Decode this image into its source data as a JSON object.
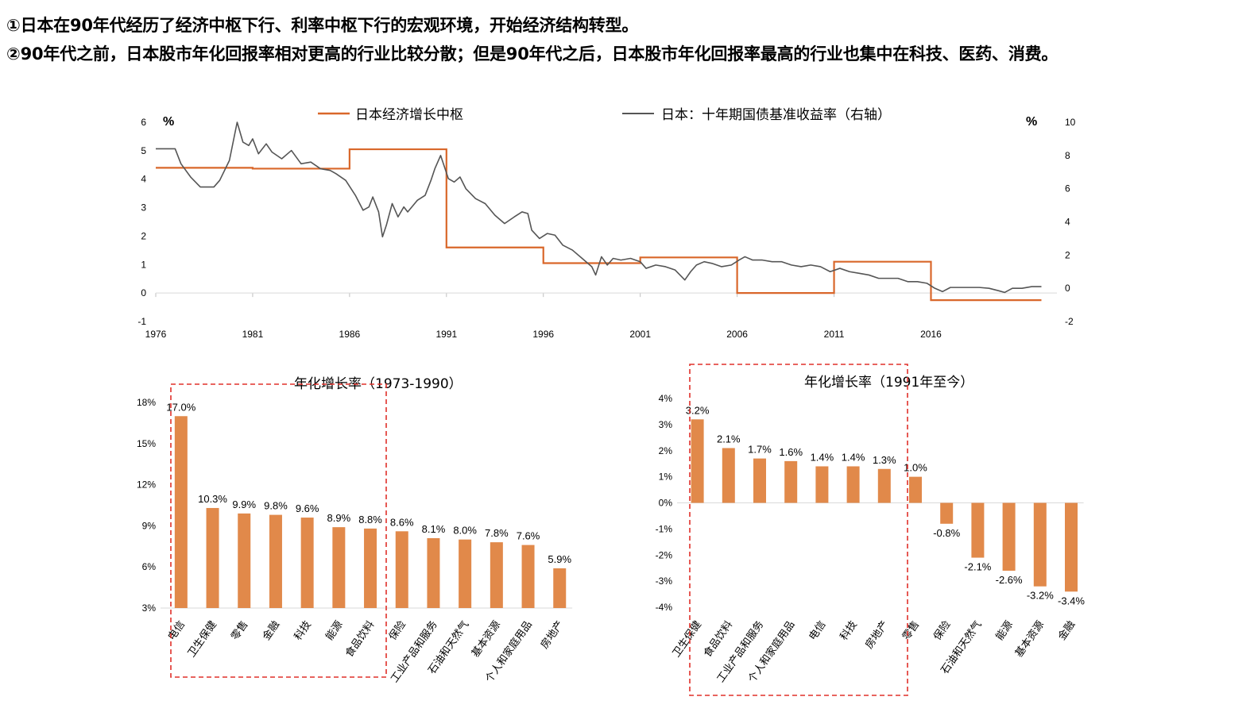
{
  "notes": {
    "line1": "①日本在90年代经历了经济中枢下行、利率中枢下行的宏观环境，开始经济结构转型。",
    "line2": "②90年代之前，日本股市年化回报率相对更高的行业比较分散；但是90年代之后，日本股市年化回报率最高的行业也集中在科技、医药、消费。"
  },
  "colors": {
    "orange": "#D9672A",
    "gray": "#555555",
    "bar": "#E1894A",
    "highlight": "#E0302A"
  },
  "chart_data": [
    {
      "type": "line",
      "left_unit": "%",
      "right_unit": "%",
      "x_ticks": [
        "1976",
        "1981",
        "1986",
        "1991",
        "1996",
        "2001",
        "2006",
        "2011",
        "2016"
      ],
      "y_ticks_left": [
        "6",
        "5",
        "4",
        "3",
        "2",
        "1",
        "0",
        "-1"
      ],
      "y_ticks_right": [
        "10",
        "8",
        "6",
        "4",
        "2",
        "0",
        "-2"
      ],
      "ylim_left": [
        -1,
        6
      ],
      "ylim_right": [
        -2,
        10
      ],
      "xlim": [
        1976,
        2022.5
      ],
      "series": [
        {
          "name": "日本经济增长中枢",
          "axis": "left",
          "step": true,
          "points": [
            [
              1976,
              4.4
            ],
            [
              1981,
              4.4
            ],
            [
              1981,
              4.37
            ],
            [
              1986,
              4.37
            ],
            [
              1986,
              5.05
            ],
            [
              1991,
              5.05
            ],
            [
              1991,
              1.6
            ],
            [
              1996,
              1.6
            ],
            [
              1996,
              1.05
            ],
            [
              2001,
              1.05
            ],
            [
              2001,
              1.25
            ],
            [
              2006,
              1.25
            ],
            [
              2006,
              0.0
            ],
            [
              2011,
              0.0
            ],
            [
              2011,
              1.1
            ],
            [
              2016,
              1.1
            ],
            [
              2016,
              -0.25
            ],
            [
              2021.7,
              -0.25
            ]
          ]
        },
        {
          "name": "日本：十年期国债基准收益率（右轴）",
          "axis": "right",
          "points": [
            [
              1976,
              8.4
            ],
            [
              1977,
              8.4
            ],
            [
              1977.3,
              7.5
            ],
            [
              1977.8,
              6.7
            ],
            [
              1978.3,
              6.1
            ],
            [
              1979,
              6.1
            ],
            [
              1979.3,
              6.5
            ],
            [
              1979.8,
              7.7
            ],
            [
              1980.2,
              10.0
            ],
            [
              1980.5,
              8.8
            ],
            [
              1980.8,
              8.6
            ],
            [
              1981,
              9.0
            ],
            [
              1981.3,
              8.1
            ],
            [
              1981.7,
              8.7
            ],
            [
              1982,
              8.2
            ],
            [
              1982.5,
              7.8
            ],
            [
              1983,
              8.3
            ],
            [
              1983.5,
              7.5
            ],
            [
              1984,
              7.6
            ],
            [
              1984.5,
              7.2
            ],
            [
              1985,
              7.1
            ],
            [
              1985.3,
              6.9
            ],
            [
              1985.8,
              6.5
            ],
            [
              1986.3,
              5.6
            ],
            [
              1986.7,
              4.7
            ],
            [
              1987,
              4.9
            ],
            [
              1987.2,
              5.5
            ],
            [
              1987.5,
              4.6
            ],
            [
              1987.7,
              3.1
            ],
            [
              1987.9,
              3.8
            ],
            [
              1988.2,
              5.1
            ],
            [
              1988.5,
              4.3
            ],
            [
              1988.8,
              4.9
            ],
            [
              1989,
              4.6
            ],
            [
              1989.5,
              5.3
            ],
            [
              1989.9,
              5.6
            ],
            [
              1990.2,
              6.5
            ],
            [
              1990.4,
              7.2
            ],
            [
              1990.7,
              8.0
            ],
            [
              1990.9,
              7.3
            ],
            [
              1991.1,
              6.6
            ],
            [
              1991.4,
              6.4
            ],
            [
              1991.7,
              6.7
            ],
            [
              1992,
              6.0
            ],
            [
              1992.5,
              5.4
            ],
            [
              1993,
              5.1
            ],
            [
              1993.5,
              4.4
            ],
            [
              1994,
              3.9
            ],
            [
              1994.5,
              4.3
            ],
            [
              1994.9,
              4.6
            ],
            [
              1995.2,
              4.5
            ],
            [
              1995.4,
              3.5
            ],
            [
              1995.8,
              3.0
            ],
            [
              1996.2,
              3.3
            ],
            [
              1996.6,
              3.2
            ],
            [
              1997,
              2.6
            ],
            [
              1997.5,
              2.3
            ],
            [
              1998,
              1.8
            ],
            [
              1998.5,
              1.3
            ],
            [
              1998.7,
              0.8
            ],
            [
              1999,
              1.9
            ],
            [
              1999.3,
              1.4
            ],
            [
              1999.6,
              1.8
            ],
            [
              2000,
              1.7
            ],
            [
              2000.5,
              1.8
            ],
            [
              2001,
              1.6
            ],
            [
              2001.3,
              1.2
            ],
            [
              2001.8,
              1.4
            ],
            [
              2002.3,
              1.3
            ],
            [
              2002.8,
              1.1
            ],
            [
              2003.3,
              0.5
            ],
            [
              2003.6,
              1.0
            ],
            [
              2003.9,
              1.4
            ],
            [
              2004.3,
              1.6
            ],
            [
              2004.7,
              1.5
            ],
            [
              2005.2,
              1.3
            ],
            [
              2005.7,
              1.4
            ],
            [
              2006.1,
              1.7
            ],
            [
              2006.4,
              1.9
            ],
            [
              2006.8,
              1.7
            ],
            [
              2007.3,
              1.7
            ],
            [
              2007.8,
              1.6
            ],
            [
              2008.3,
              1.6
            ],
            [
              2008.8,
              1.4
            ],
            [
              2009.3,
              1.3
            ],
            [
              2009.8,
              1.4
            ],
            [
              2010.3,
              1.3
            ],
            [
              2010.8,
              1.0
            ],
            [
              2011.3,
              1.2
            ],
            [
              2011.8,
              1.0
            ],
            [
              2012.3,
              0.9
            ],
            [
              2012.8,
              0.8
            ],
            [
              2013.3,
              0.6
            ],
            [
              2013.8,
              0.6
            ],
            [
              2014.3,
              0.6
            ],
            [
              2014.8,
              0.4
            ],
            [
              2015.3,
              0.4
            ],
            [
              2015.8,
              0.3
            ],
            [
              2016.2,
              0.0
            ],
            [
              2016.6,
              -0.2
            ],
            [
              2017,
              0.05
            ],
            [
              2017.5,
              0.05
            ],
            [
              2018,
              0.05
            ],
            [
              2018.5,
              0.05
            ],
            [
              2019,
              0.0
            ],
            [
              2019.5,
              -0.15
            ],
            [
              2019.8,
              -0.25
            ],
            [
              2020.2,
              0.0
            ],
            [
              2020.7,
              0.0
            ],
            [
              2021.2,
              0.1
            ],
            [
              2021.7,
              0.1
            ]
          ]
        }
      ]
    },
    {
      "type": "bar",
      "title": "年化增长率（1973-1990）",
      "categories": [
        "电信",
        "卫生保健",
        "零售",
        "金融",
        "科技",
        "能源",
        "食品饮料",
        "保险",
        "工业产品和服务",
        "石油和天然气",
        "基本资源",
        "个人和家庭用品",
        "房地产"
      ],
      "values": [
        17.0,
        10.3,
        9.9,
        9.8,
        9.6,
        8.9,
        8.8,
        8.6,
        8.1,
        8.0,
        7.8,
        7.6,
        5.9
      ],
      "labels": [
        "17.0%",
        "10.3%",
        "9.9%",
        "9.8%",
        "9.6%",
        "8.9%",
        "8.8%",
        "8.6%",
        "8.1%",
        "8.0%",
        "7.8%",
        "7.6%",
        "5.9%"
      ],
      "y_ticks": [
        "18%",
        "15%",
        "12%",
        "9%",
        "6%",
        "3%"
      ],
      "ylim": [
        3,
        18
      ],
      "highlighted": [
        0,
        6
      ]
    },
    {
      "type": "bar",
      "title": "年化增长率（1991年至今）",
      "categories": [
        "卫生保健",
        "食品饮料",
        "工业产品和服务",
        "个人和家庭用品",
        "电信",
        "科技",
        "房地产",
        "零售",
        "保险",
        "石油和天然气",
        "能源",
        "基本资源",
        "金融"
      ],
      "values": [
        3.2,
        2.1,
        1.7,
        1.6,
        1.4,
        1.4,
        1.3,
        1.0,
        -0.8,
        -2.1,
        -2.6,
        -3.2,
        -3.4
      ],
      "labels": [
        "3.2%",
        "2.1%",
        "1.7%",
        "1.6%",
        "1.4%",
        "1.4%",
        "1.3%",
        "1.0%",
        "-0.8%",
        "-2.1%",
        "-2.6%",
        "-3.2%",
        "-3.4%"
      ],
      "y_ticks": [
        "4%",
        "3%",
        "2%",
        "1%",
        "0%",
        "-1%",
        "-2%",
        "-3%",
        "-4%"
      ],
      "ylim": [
        -4,
        4
      ],
      "highlighted": [
        0,
        6
      ]
    }
  ]
}
